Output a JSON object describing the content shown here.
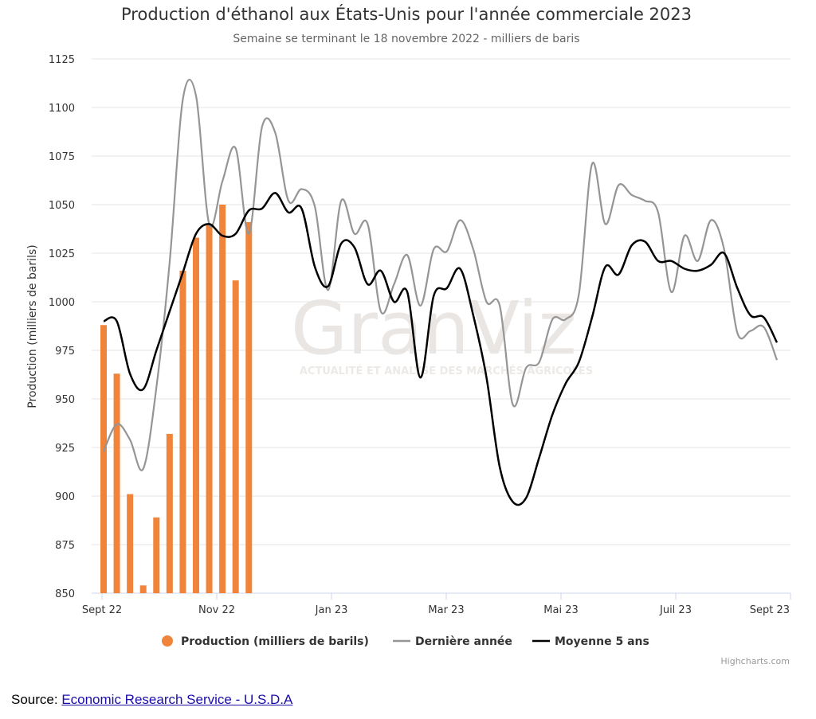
{
  "chart_data": {
    "type": "bar+line",
    "title": "Production d'éthanol aux États-Unis pour l'année commerciale 2023",
    "subtitle": "Semaine se terminant le 18 novembre 2022 - milliers de baris",
    "ylabel": "Production (milliers de barils)",
    "ylim": [
      850,
      1125
    ],
    "yticks": [
      850,
      875,
      900,
      925,
      950,
      975,
      1000,
      1025,
      1050,
      1075,
      1100,
      1125
    ],
    "xticks": [
      "Sept 22",
      "Nov 22",
      "Jan 23",
      "Mar 23",
      "Mai 23",
      "Juil 23",
      "Sept 23"
    ],
    "grid": true,
    "legend_position": "bottom",
    "credits": "Highcharts.com",
    "watermark": {
      "text": "GranViz",
      "tagline": "ACTUALITÉ ET ANALYSE DES MARCHÉS AGRICOLES"
    },
    "weeks": 52,
    "series": [
      {
        "name": "Production (milliers de barils)",
        "type": "bar",
        "color": "#f0843a",
        "values": [
          988,
          963,
          901,
          854,
          889,
          932,
          1016,
          1033,
          1040,
          1050,
          1011,
          1041
        ]
      },
      {
        "name": "Dernière année",
        "type": "line",
        "color": "#959595",
        "values": [
          923,
          937,
          929,
          914,
          956,
          1020,
          1104,
          1106,
          1040,
          1062,
          1079,
          1035,
          1090,
          1087,
          1052,
          1058,
          1049,
          1006,
          1052,
          1035,
          1040,
          995,
          1009,
          1024,
          998,
          1027,
          1026,
          1042,
          1027,
          1000,
          998,
          947,
          966,
          969,
          991,
          991,
          1004,
          1071,
          1040,
          1060,
          1055,
          1052,
          1046,
          1005,
          1034,
          1021,
          1042,
          1027,
          984,
          985,
          987,
          970
        ]
      },
      {
        "name": "Moyenne 5 ans",
        "type": "line",
        "color": "#000000",
        "values": [
          990,
          990,
          963,
          955,
          975,
          995,
          1015,
          1035,
          1040,
          1034,
          1035,
          1047,
          1048,
          1056,
          1046,
          1048,
          1018,
          1008,
          1030,
          1028,
          1009,
          1016,
          1000,
          1005,
          961,
          1003,
          1007,
          1017,
          993,
          961,
          915,
          897,
          899,
          920,
          942,
          958,
          969,
          992,
          1018,
          1014,
          1029,
          1031,
          1021,
          1021,
          1017,
          1016,
          1019,
          1025,
          1007,
          993,
          992,
          979
        ]
      }
    ]
  },
  "source": {
    "label": "Source: ",
    "link_text": "Economic Research Service - U.S.D.A"
  }
}
